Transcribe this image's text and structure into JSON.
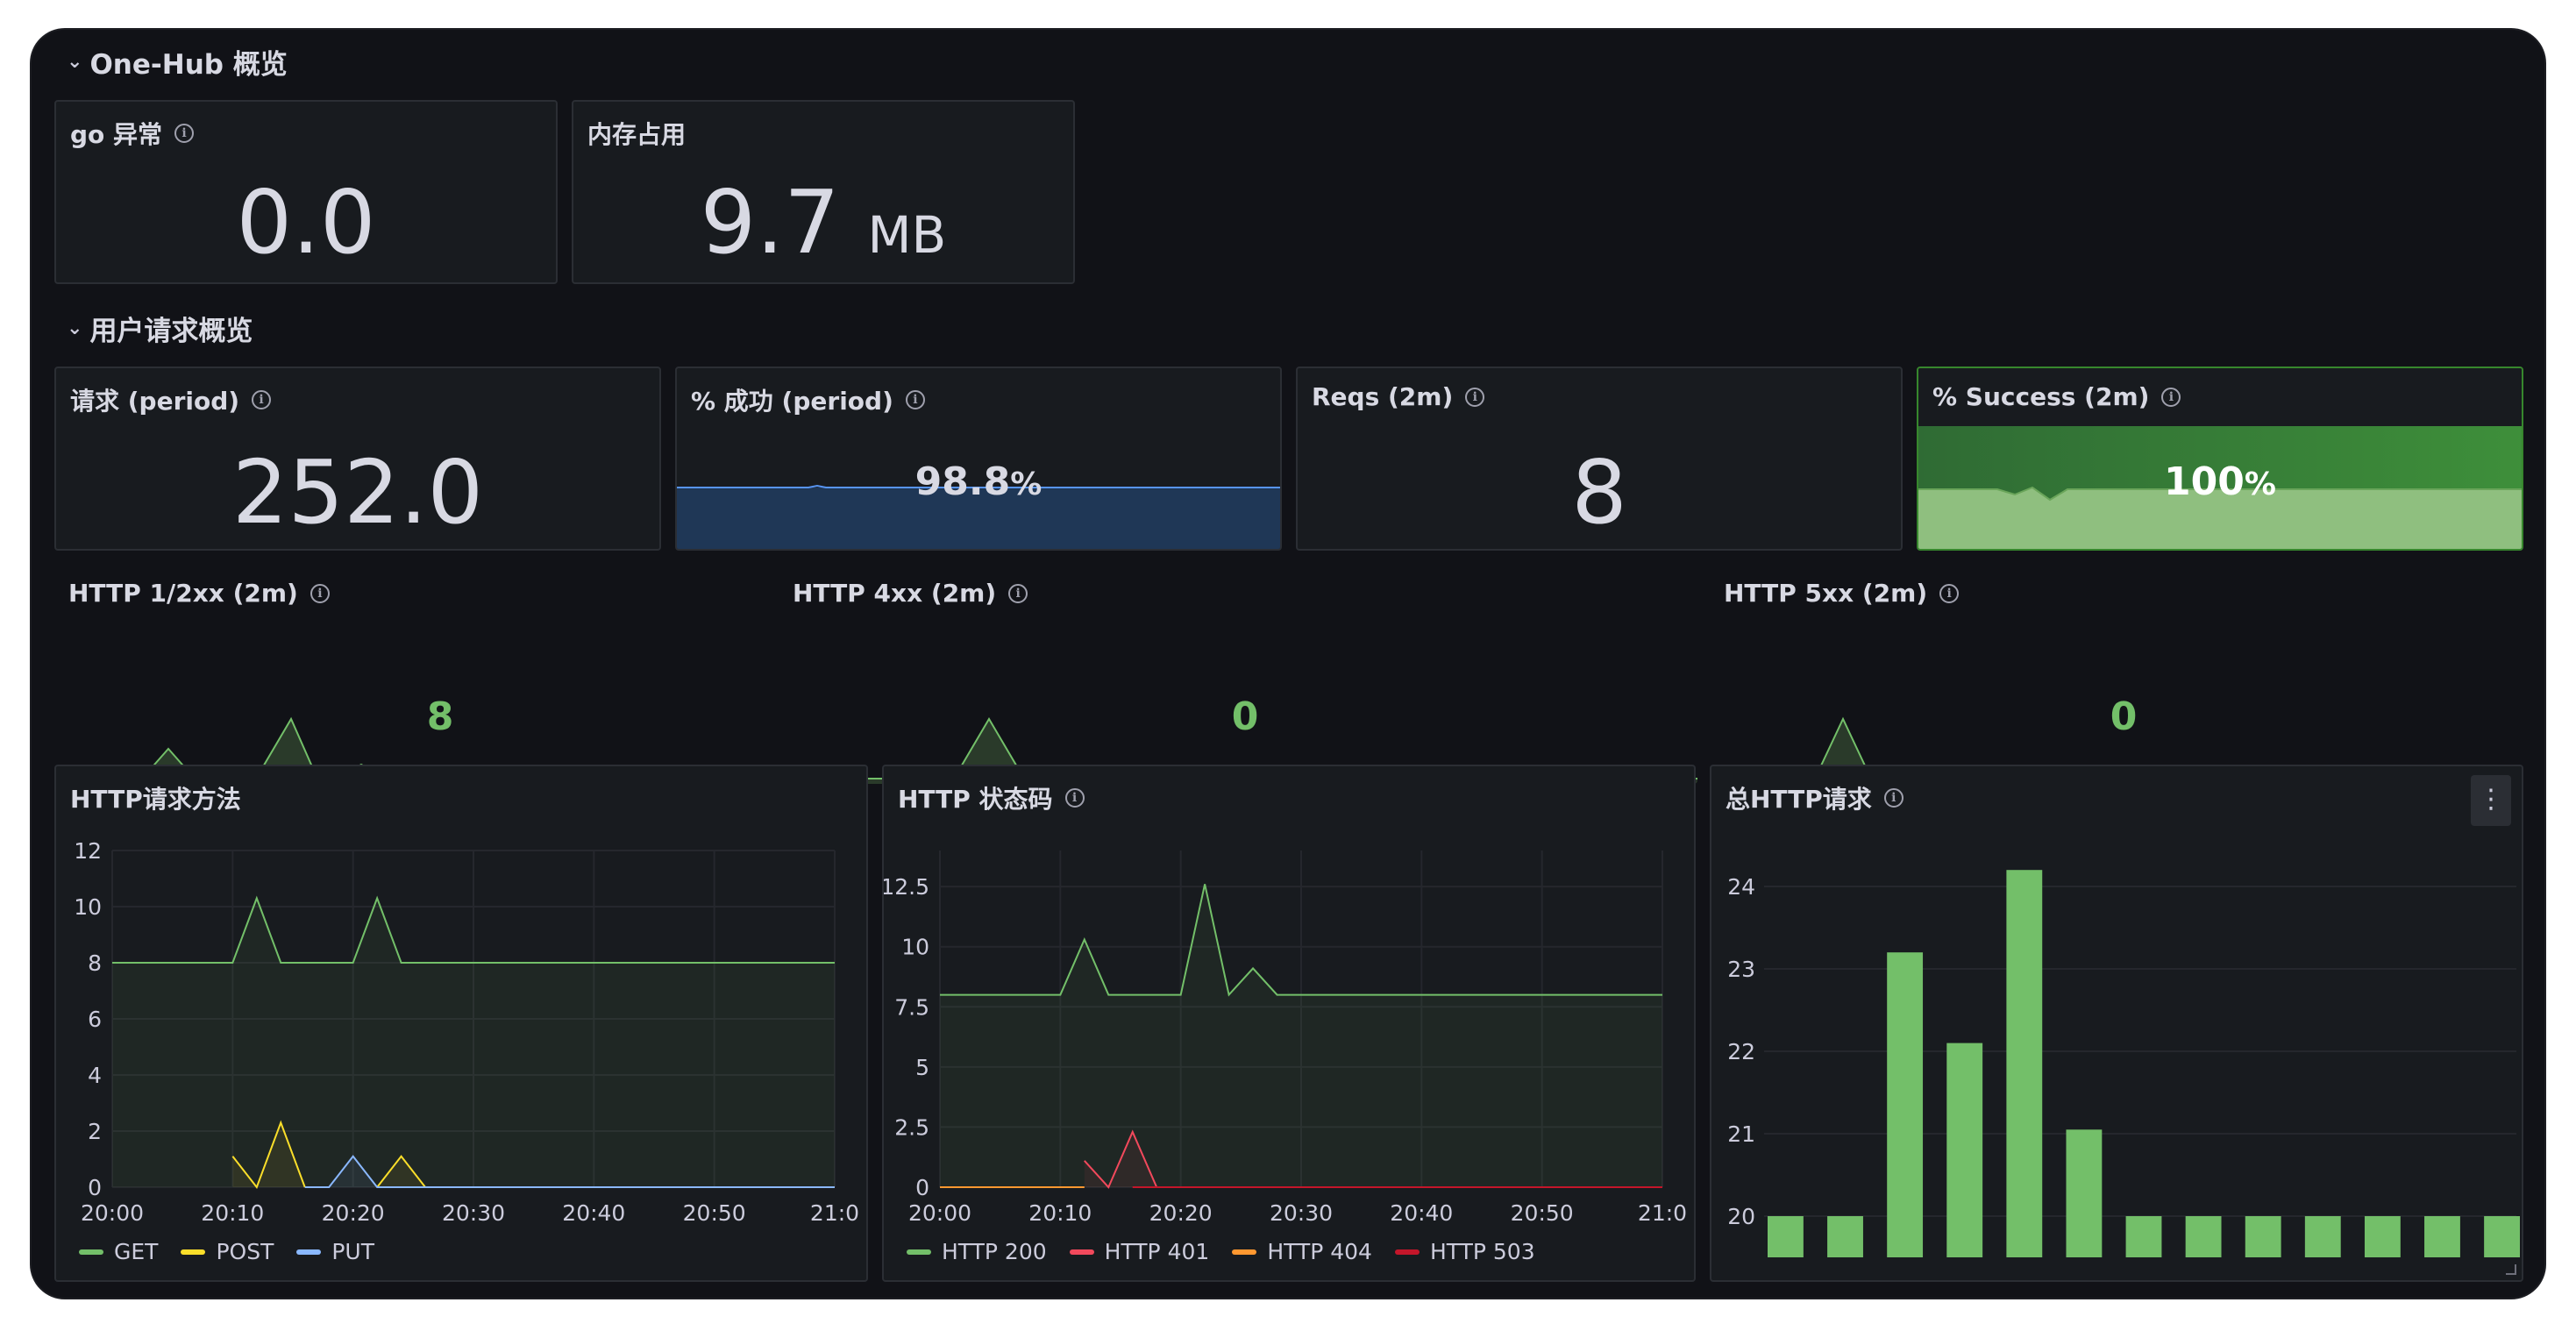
{
  "rows": {
    "overview": "One-Hub 概览",
    "requests": "用户请求概览"
  },
  "stats": {
    "go_errors": {
      "title": "go 异常",
      "value": "0.0"
    },
    "memory": {
      "title": "内存占用",
      "value": "9.7",
      "unit": "MB"
    },
    "requests_period": {
      "title": "请求 (period)",
      "value": "252.0"
    },
    "success_period": {
      "title": "% 成功 (period)",
      "value": "98.8",
      "unit": "%"
    },
    "reqs_2m": {
      "title": "Reqs (2m)",
      "value": "8"
    },
    "success_2m": {
      "title": "% Success (2m)",
      "value": "100",
      "unit": "%"
    }
  },
  "sparks": {
    "http12": {
      "title": "HTTP 1/2xx (2m)",
      "value": "8"
    },
    "http4": {
      "title": "HTTP 4xx (2m)",
      "value": "0"
    },
    "http5": {
      "title": "HTTP 5xx (2m)",
      "value": "0"
    }
  },
  "colors": {
    "green": "#73bf69",
    "yellow": "#fade2a",
    "blue": "#8ab8ff",
    "red": "#f2495c",
    "orange": "#ff9830"
  },
  "chart_data": [
    {
      "type": "line",
      "title": "HTTP请求方法",
      "x": [
        "20:00",
        "20:02",
        "20:04",
        "20:06",
        "20:08",
        "20:10",
        "20:12",
        "20:14",
        "20:16",
        "20:18",
        "20:20",
        "20:22",
        "20:24",
        "20:26",
        "20:28",
        "20:30",
        "20:35",
        "20:40",
        "20:45",
        "20:50",
        "20:55",
        "21:00"
      ],
      "xticks": [
        "20:00",
        "20:10",
        "20:20",
        "20:30",
        "20:40",
        "20:50",
        "21:0"
      ],
      "yticks": [
        "0",
        "2",
        "4",
        "6",
        "8",
        "10",
        "12"
      ],
      "ylim": [
        0,
        12
      ],
      "series": [
        {
          "name": "GET",
          "color": "#73bf69",
          "values": [
            8,
            8,
            8,
            8,
            8,
            8,
            10.3,
            8,
            8,
            8,
            8,
            10.3,
            8,
            8,
            8,
            8,
            8,
            8,
            8,
            8,
            8,
            8
          ]
        },
        {
          "name": "POST",
          "color": "#fade2a",
          "values": [
            null,
            null,
            null,
            null,
            null,
            1.1,
            0,
            2.3,
            0,
            null,
            null,
            0,
            1.1,
            0,
            null,
            null,
            null,
            null,
            null,
            null,
            null,
            null
          ]
        },
        {
          "name": "PUT",
          "color": "#8ab8ff",
          "values": [
            null,
            null,
            null,
            null,
            null,
            null,
            null,
            null,
            0,
            0,
            1.1,
            0,
            0,
            0,
            0,
            0,
            0,
            0,
            0,
            0,
            0,
            0
          ]
        }
      ],
      "legend": "bottom"
    },
    {
      "type": "line",
      "title": "HTTP 状态码",
      "x": [
        "20:00",
        "20:02",
        "20:04",
        "20:06",
        "20:08",
        "20:10",
        "20:12",
        "20:14",
        "20:16",
        "20:18",
        "20:20",
        "20:22",
        "20:24",
        "20:26",
        "20:28",
        "20:30",
        "20:35",
        "20:40",
        "20:45",
        "20:50",
        "20:55",
        "21:00"
      ],
      "xticks": [
        "20:00",
        "20:10",
        "20:20",
        "20:30",
        "20:40",
        "20:50",
        "21:0"
      ],
      "yticks": [
        "0",
        "2.5",
        "5",
        "7.5",
        "10",
        "12.5"
      ],
      "ylim": [
        0,
        14
      ],
      "series": [
        {
          "name": "HTTP 200",
          "color": "#73bf69",
          "values": [
            8,
            8,
            8,
            8,
            8,
            8,
            10.3,
            8,
            8,
            8,
            8,
            12.6,
            8,
            9.1,
            8,
            8,
            8,
            8,
            8,
            8,
            8,
            8
          ]
        },
        {
          "name": "HTTP 401",
          "color": "#f2495c",
          "values": [
            null,
            null,
            null,
            null,
            null,
            null,
            1.1,
            0,
            2.3,
            0,
            0,
            0,
            0,
            0,
            0,
            0,
            0,
            0,
            0,
            0,
            0,
            0
          ]
        },
        {
          "name": "HTTP 404",
          "color": "#ff9830",
          "values": [
            0,
            0,
            0,
            0,
            0,
            0,
            0,
            null,
            null,
            null,
            null,
            null,
            null,
            null,
            null,
            null,
            null,
            null,
            null,
            null,
            null,
            null
          ]
        },
        {
          "name": "HTTP 503",
          "color": "#c4162a",
          "values": [
            null,
            null,
            null,
            null,
            null,
            null,
            null,
            null,
            0,
            0,
            0,
            0,
            0,
            0,
            0,
            0,
            0,
            0,
            0,
            0,
            0,
            0
          ]
        }
      ],
      "legend": "bottom"
    },
    {
      "type": "bar",
      "title": "总HTTP请求",
      "yticks": [
        "20",
        "21",
        "22",
        "23",
        "24"
      ],
      "ylim": [
        19.5,
        24.5
      ],
      "values": [
        20,
        20,
        23.2,
        22.1,
        24.2,
        21.05,
        20,
        20,
        20,
        20,
        20,
        20,
        20
      ],
      "color": "#73bf69"
    }
  ]
}
